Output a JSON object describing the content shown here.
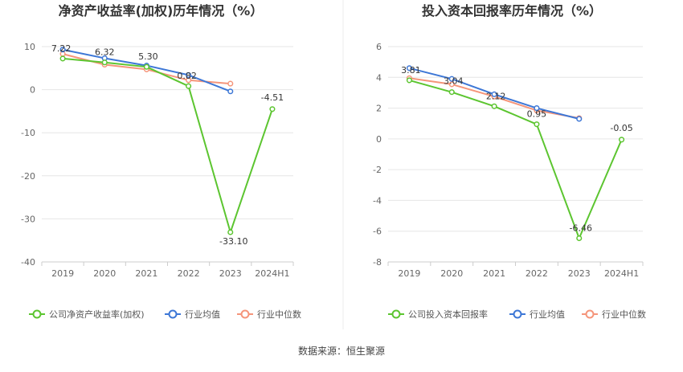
{
  "source": "数据来源：恒生聚源",
  "chart_data": [
    {
      "type": "line",
      "title": "净资产收益率(加权)历年情况（%）",
      "categories": [
        "2019",
        "2020",
        "2021",
        "2022",
        "2023",
        "2024H1"
      ],
      "ylim": [
        -40,
        10
      ],
      "yticks": [
        10,
        0,
        -10,
        -20,
        -30,
        -40
      ],
      "grid": true,
      "legend_position": "bottom",
      "series": [
        {
          "name": "公司净资产收益率(加权)",
          "color": "#5cc530",
          "values": [
            7.22,
            6.32,
            5.3,
            0.82,
            -33.1,
            -4.51
          ],
          "labels": [
            "7.22",
            "6.32",
            "5.30",
            "0.82",
            "-33.10",
            "-4.51"
          ]
        },
        {
          "name": "行业均值",
          "color": "#3d77d6",
          "values": [
            9.3,
            7.3,
            5.6,
            3.4,
            -0.4,
            null
          ]
        },
        {
          "name": "行业中位数",
          "color": "#f5957a",
          "values": [
            8.3,
            5.8,
            4.7,
            2.2,
            1.4,
            null
          ]
        }
      ]
    },
    {
      "type": "line",
      "title": "投入资本回报率历年情况（%）",
      "categories": [
        "2019",
        "2020",
        "2021",
        "2022",
        "2023",
        "2024H1"
      ],
      "ylim": [
        -8,
        6
      ],
      "yticks": [
        6,
        4,
        2,
        0,
        -2,
        -4,
        -6,
        -8
      ],
      "grid": true,
      "legend_position": "bottom",
      "series": [
        {
          "name": "公司投入资本回报率",
          "color": "#5cc530",
          "values": [
            3.81,
            3.04,
            2.12,
            0.95,
            -6.46,
            -0.05
          ],
          "labels": [
            "3.81",
            "3.04",
            "2.12",
            "0.95",
            "-6.46",
            "-0.05"
          ]
        },
        {
          "name": "行业均值",
          "color": "#3d77d6",
          "values": [
            4.6,
            3.9,
            2.9,
            2.0,
            1.3,
            null
          ]
        },
        {
          "name": "行业中位数",
          "color": "#f5957a",
          "values": [
            3.95,
            3.55,
            2.75,
            1.85,
            1.35,
            null
          ]
        }
      ]
    }
  ]
}
